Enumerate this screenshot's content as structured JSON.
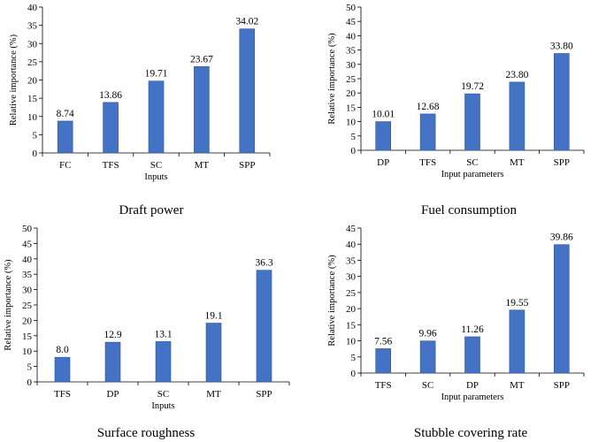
{
  "chart_data": [
    {
      "type": "bar",
      "title": "Draft power",
      "xlabel": "Inputs",
      "ylabel": "Relative importance (%)",
      "ylim": [
        0,
        40
      ],
      "yticks": [
        0,
        5,
        10,
        15,
        20,
        25,
        30,
        35,
        40
      ],
      "categories": [
        "FC",
        "TFS",
        "SC",
        "MT",
        "SPP"
      ],
      "values": [
        8.74,
        13.86,
        19.71,
        23.67,
        34.02
      ],
      "value_labels": [
        "8.74",
        "13.86",
        "19.71",
        "23.67",
        "34.02"
      ],
      "bar_color": "#4472C4"
    },
    {
      "type": "bar",
      "title": "Fuel consumption",
      "xlabel": "Input parameters",
      "ylabel": "Relative importance (%)",
      "ylim": [
        0,
        50
      ],
      "yticks": [
        0,
        5,
        10,
        15,
        20,
        25,
        30,
        35,
        40,
        45,
        50
      ],
      "categories": [
        "DP",
        "TFS",
        "SC",
        "MT",
        "SPP"
      ],
      "values": [
        10.01,
        12.68,
        19.72,
        23.8,
        33.8
      ],
      "value_labels": [
        "10.01",
        "12.68",
        "19.72",
        "23.80",
        "33.80"
      ],
      "bar_color": "#4472C4"
    },
    {
      "type": "bar",
      "title": "Surface roughness",
      "xlabel": "Inputs",
      "ylabel": "Relative importance (%)",
      "ylim": [
        0,
        50
      ],
      "yticks": [
        0,
        5,
        10,
        15,
        20,
        25,
        30,
        35,
        40,
        45,
        50
      ],
      "categories": [
        "TFS",
        "DP",
        "SC",
        "MT",
        "SPP"
      ],
      "values": [
        8.0,
        12.9,
        13.1,
        19.1,
        36.3
      ],
      "value_labels": [
        "8.0",
        "12.9",
        "13.1",
        "19.1",
        "36.3"
      ],
      "bar_color": "#4472C4"
    },
    {
      "type": "bar",
      "title": "Stubble covering rate",
      "xlabel": "Input parameters",
      "ylabel": "Relative importance (%)",
      "ylim": [
        0,
        45
      ],
      "yticks": [
        0,
        5,
        10,
        15,
        20,
        25,
        30,
        35,
        40,
        45
      ],
      "categories": [
        "TFS",
        "SC",
        "DP",
        "MT",
        "SPP"
      ],
      "values": [
        7.56,
        9.96,
        11.26,
        19.55,
        39.86
      ],
      "value_labels": [
        "7.56",
        "9.96",
        "11.26",
        "19.55",
        "39.86"
      ],
      "bar_color": "#4472C4"
    }
  ]
}
